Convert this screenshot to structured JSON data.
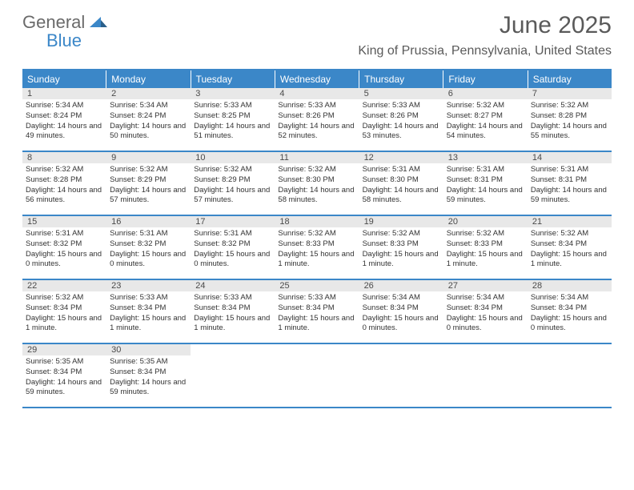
{
  "logo": {
    "part1": "General",
    "part2": "Blue"
  },
  "title": "June 2025",
  "location": "King of Prussia, Pennsylvania, United States",
  "colors": {
    "header_bar": "#3b87c8",
    "header_text": "#ffffff",
    "daynum_bg": "#e8e8e8",
    "text_gray": "#5a5a5a",
    "body_text": "#333333",
    "logo_gray": "#6a6a6a",
    "logo_blue": "#3b87c8"
  },
  "weekdays": [
    "Sunday",
    "Monday",
    "Tuesday",
    "Wednesday",
    "Thursday",
    "Friday",
    "Saturday"
  ],
  "weeks": [
    [
      {
        "n": "1",
        "sr": "5:34 AM",
        "ss": "8:24 PM",
        "dl": "14 hours and 49 minutes."
      },
      {
        "n": "2",
        "sr": "5:34 AM",
        "ss": "8:24 PM",
        "dl": "14 hours and 50 minutes."
      },
      {
        "n": "3",
        "sr": "5:33 AM",
        "ss": "8:25 PM",
        "dl": "14 hours and 51 minutes."
      },
      {
        "n": "4",
        "sr": "5:33 AM",
        "ss": "8:26 PM",
        "dl": "14 hours and 52 minutes."
      },
      {
        "n": "5",
        "sr": "5:33 AM",
        "ss": "8:26 PM",
        "dl": "14 hours and 53 minutes."
      },
      {
        "n": "6",
        "sr": "5:32 AM",
        "ss": "8:27 PM",
        "dl": "14 hours and 54 minutes."
      },
      {
        "n": "7",
        "sr": "5:32 AM",
        "ss": "8:28 PM",
        "dl": "14 hours and 55 minutes."
      }
    ],
    [
      {
        "n": "8",
        "sr": "5:32 AM",
        "ss": "8:28 PM",
        "dl": "14 hours and 56 minutes."
      },
      {
        "n": "9",
        "sr": "5:32 AM",
        "ss": "8:29 PM",
        "dl": "14 hours and 57 minutes."
      },
      {
        "n": "10",
        "sr": "5:32 AM",
        "ss": "8:29 PM",
        "dl": "14 hours and 57 minutes."
      },
      {
        "n": "11",
        "sr": "5:32 AM",
        "ss": "8:30 PM",
        "dl": "14 hours and 58 minutes."
      },
      {
        "n": "12",
        "sr": "5:31 AM",
        "ss": "8:30 PM",
        "dl": "14 hours and 58 minutes."
      },
      {
        "n": "13",
        "sr": "5:31 AM",
        "ss": "8:31 PM",
        "dl": "14 hours and 59 minutes."
      },
      {
        "n": "14",
        "sr": "5:31 AM",
        "ss": "8:31 PM",
        "dl": "14 hours and 59 minutes."
      }
    ],
    [
      {
        "n": "15",
        "sr": "5:31 AM",
        "ss": "8:32 PM",
        "dl": "15 hours and 0 minutes."
      },
      {
        "n": "16",
        "sr": "5:31 AM",
        "ss": "8:32 PM",
        "dl": "15 hours and 0 minutes."
      },
      {
        "n": "17",
        "sr": "5:31 AM",
        "ss": "8:32 PM",
        "dl": "15 hours and 0 minutes."
      },
      {
        "n": "18",
        "sr": "5:32 AM",
        "ss": "8:33 PM",
        "dl": "15 hours and 1 minute."
      },
      {
        "n": "19",
        "sr": "5:32 AM",
        "ss": "8:33 PM",
        "dl": "15 hours and 1 minute."
      },
      {
        "n": "20",
        "sr": "5:32 AM",
        "ss": "8:33 PM",
        "dl": "15 hours and 1 minute."
      },
      {
        "n": "21",
        "sr": "5:32 AM",
        "ss": "8:34 PM",
        "dl": "15 hours and 1 minute."
      }
    ],
    [
      {
        "n": "22",
        "sr": "5:32 AM",
        "ss": "8:34 PM",
        "dl": "15 hours and 1 minute."
      },
      {
        "n": "23",
        "sr": "5:33 AM",
        "ss": "8:34 PM",
        "dl": "15 hours and 1 minute."
      },
      {
        "n": "24",
        "sr": "5:33 AM",
        "ss": "8:34 PM",
        "dl": "15 hours and 1 minute."
      },
      {
        "n": "25",
        "sr": "5:33 AM",
        "ss": "8:34 PM",
        "dl": "15 hours and 1 minute."
      },
      {
        "n": "26",
        "sr": "5:34 AM",
        "ss": "8:34 PM",
        "dl": "15 hours and 0 minutes."
      },
      {
        "n": "27",
        "sr": "5:34 AM",
        "ss": "8:34 PM",
        "dl": "15 hours and 0 minutes."
      },
      {
        "n": "28",
        "sr": "5:34 AM",
        "ss": "8:34 PM",
        "dl": "15 hours and 0 minutes."
      }
    ],
    [
      {
        "n": "29",
        "sr": "5:35 AM",
        "ss": "8:34 PM",
        "dl": "14 hours and 59 minutes."
      },
      {
        "n": "30",
        "sr": "5:35 AM",
        "ss": "8:34 PM",
        "dl": "14 hours and 59 minutes."
      },
      null,
      null,
      null,
      null,
      null
    ]
  ],
  "labels": {
    "sunrise": "Sunrise:",
    "sunset": "Sunset:",
    "daylight": "Daylight:"
  }
}
